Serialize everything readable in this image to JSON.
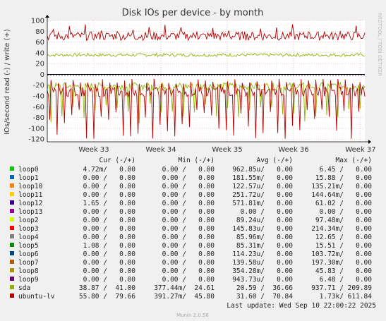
{
  "chart_data": {
    "type": "line",
    "title": "Disk IOs per device - by month",
    "ylabel": "IOs/second read (-) / write (+)",
    "side_label": "RRDTOOL / TOBI OETIKER",
    "footer": "Munin 2.0.56",
    "last_update": "Last update: Wed Sep 10 22:00:22 2025",
    "ylim": [
      -125,
      100
    ],
    "yticks": [
      "100",
      "80",
      "60",
      "40",
      "20",
      "0",
      "-20",
      "-40",
      "-60",
      "-80",
      "-100",
      "-120"
    ],
    "xlabels": [
      "Week 33",
      "Week 34",
      "Week 35",
      "Week 36",
      "Week 37"
    ],
    "legend_headers": [
      "Cur (-/+)",
      "Min (-/+)",
      "Avg (-/+)",
      "Max (-/+)"
    ],
    "legend": [
      {
        "name": "loop0",
        "color": "#00cc00",
        "cur": "4.72m/   0.00",
        "min": "0.00 /   0.00",
        "avg": "962.85u/   0.00",
        "max": "6.45 /   0.00"
      },
      {
        "name": "loop1",
        "color": "#0066b3",
        "cur": "0.00 /   0.00",
        "min": "0.00 /   0.00",
        "avg": "181.55m/   0.00",
        "max": "15.88 /   0.00"
      },
      {
        "name": "loop10",
        "color": "#ff8000",
        "cur": "0.00 /   0.00",
        "min": "0.00 /   0.00",
        "avg": "122.57u/   0.00",
        "max": "135.21m/   0.00"
      },
      {
        "name": "loop11",
        "color": "#ffcc00",
        "cur": "0.00 /   0.00",
        "min": "0.00 /   0.00",
        "avg": "251.72u/   0.00",
        "max": "144.64m/   0.00"
      },
      {
        "name": "loop12",
        "color": "#330099",
        "cur": "1.65 /   0.00",
        "min": "0.00 /   0.00",
        "avg": "571.81m/   0.00",
        "max": "61.02 /   0.00"
      },
      {
        "name": "loop13",
        "color": "#990099",
        "cur": "0.00 /   0.00",
        "min": "0.00 /   0.00",
        "avg": "0.00 /   0.00",
        "max": "0.00 /   0.00"
      },
      {
        "name": "loop2",
        "color": "#ccff00",
        "cur": "0.00 /   0.00",
        "min": "0.00 /   0.00",
        "avg": "89.24u/   0.00",
        "max": "97.48m/   0.00"
      },
      {
        "name": "loop3",
        "color": "#ff0000",
        "cur": "0.00 /   0.00",
        "min": "0.00 /   0.00",
        "avg": "145.83u/   0.00",
        "max": "214.34m/   0.00"
      },
      {
        "name": "loop4",
        "color": "#808080",
        "cur": "0.00 /   0.00",
        "min": "0.00 /   0.00",
        "avg": "85.96m/   0.00",
        "max": "12.65 /   0.00"
      },
      {
        "name": "loop5",
        "color": "#008f00",
        "cur": "1.08 /   0.00",
        "min": "0.00 /   0.00",
        "avg": "85.31m/   0.00",
        "max": "15.51 /   0.00"
      },
      {
        "name": "loop6",
        "color": "#00487d",
        "cur": "0.00 /   0.00",
        "min": "0.00 /   0.00",
        "avg": "114.23u/   0.00",
        "max": "103.72m/   0.00"
      },
      {
        "name": "loop7",
        "color": "#b35a00",
        "cur": "0.00 /   0.00",
        "min": "0.00 /   0.00",
        "avg": "139.58u/   0.00",
        "max": "197.30m/   0.00"
      },
      {
        "name": "loop8",
        "color": "#b38f00",
        "cur": "0.00 /   0.00",
        "min": "0.00 /   0.00",
        "avg": "354.28m/   0.00",
        "max": "45.83 /   0.00"
      },
      {
        "name": "loop9",
        "color": "#6b006b",
        "cur": "0.00 /   0.00",
        "min": "0.00 /   0.00",
        "avg": "943.73u/   0.00",
        "max": "6.48 /   0.00"
      },
      {
        "name": "sda",
        "color": "#8fb300",
        "cur": "38.87 /  41.00",
        "min": "377.44m/  24.61",
        "avg": "20.59 /  36.66",
        "max": "937.71 / 209.89"
      },
      {
        "name": "ubuntu-lv",
        "color": "#b30000",
        "cur": "55.80 /  79.66",
        "min": "391.27m/  45.80",
        "avg": "31.60 /  70.84",
        "max": "1.73k/ 611.84"
      }
    ],
    "series": [
      {
        "name": "sda",
        "write_level": 36,
        "read_level": -22
      },
      {
        "name": "ubuntu-lv",
        "write_level": 71,
        "read_level": -32
      }
    ],
    "grid": true
  }
}
